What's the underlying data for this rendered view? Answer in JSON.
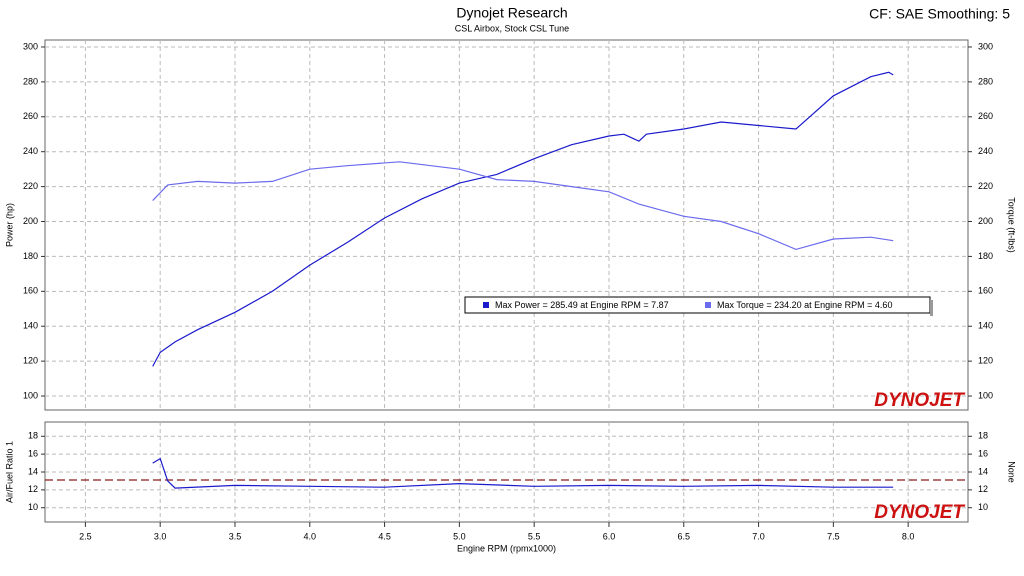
{
  "header": {
    "title": "Dynojet Research",
    "subtitle": "CSL Airbox, Stock CSL Tune",
    "annotation": "CF: SAE Smoothing: 5",
    "logo": "DYNOJET"
  },
  "chart_data": [
    {
      "type": "line",
      "ylabel": "Power (hp)",
      "y2label": "Torque (ft-lbs)",
      "xlim": [
        2.23,
        8.4
      ],
      "ylim": [
        92,
        304
      ],
      "yticks": [
        100,
        120,
        140,
        160,
        180,
        200,
        220,
        240,
        260,
        280,
        300
      ],
      "y2lim": [
        92,
        304
      ],
      "y2ticks": [
        100,
        120,
        140,
        160,
        180,
        200,
        220,
        240,
        260,
        280,
        300
      ],
      "grid": true,
      "legend": "center-right",
      "series": [
        {
          "name": "Max Power = 285.49 at Engine RPM = 7.87",
          "color": "#1a1acc",
          "x": [
            2.95,
            3.0,
            3.1,
            3.25,
            3.5,
            3.75,
            4.0,
            4.25,
            4.5,
            4.75,
            5.0,
            5.25,
            5.5,
            5.75,
            6.0,
            6.1,
            6.2,
            6.25,
            6.5,
            6.75,
            7.0,
            7.25,
            7.5,
            7.75,
            7.87,
            7.9
          ],
          "values": [
            117,
            125,
            131,
            138,
            148,
            160,
            175,
            188,
            202,
            213,
            222,
            227,
            236,
            244,
            249,
            250,
            246,
            250,
            253,
            257,
            255,
            253,
            272,
            283,
            285.49,
            284
          ]
        },
        {
          "name": "Max Torque = 234.20 at Engine RPM = 4.60",
          "color": "#6b6bee",
          "axis": "y2",
          "x": [
            2.95,
            3.05,
            3.25,
            3.5,
            3.75,
            4.0,
            4.25,
            4.6,
            5.0,
            5.25,
            5.5,
            5.75,
            6.0,
            6.2,
            6.5,
            6.75,
            7.0,
            7.25,
            7.5,
            7.75,
            7.9
          ],
          "values": [
            212,
            221,
            223,
            222,
            223,
            230,
            232,
            234.2,
            230,
            224,
            223,
            220,
            217,
            210,
            203,
            200,
            193,
            184,
            190,
            191,
            189
          ]
        }
      ]
    },
    {
      "type": "line",
      "ylabel": "Air/Fuel Ratio 1",
      "y2label": "None",
      "xlabel": "Engine RPM (rpmx1000)",
      "xlim": [
        2.23,
        8.4
      ],
      "xticks": [
        2.5,
        {
          "value": 3,
          "label": "3.0"
        },
        3.5,
        {
          "value": 4,
          "label": "4.0"
        },
        4.5,
        {
          "value": 5,
          "label": "5.0"
        },
        5.5,
        {
          "value": 6,
          "label": "6.0"
        },
        6.5,
        {
          "value": 7,
          "label": "7.0"
        },
        7.5,
        {
          "value": 8,
          "label": "8.0"
        }
      ],
      "ylim": [
        8.4,
        19.6
      ],
      "yticks": [
        10,
        12,
        14,
        16,
        18
      ],
      "y2lim": [
        8.4,
        19.6
      ],
      "y2ticks": [
        10,
        12,
        14,
        16,
        18
      ],
      "grid": true,
      "hline": 13.1,
      "hline_color": "#8b1a1a",
      "series": [
        {
          "color": "#1a1acc",
          "x": [
            2.95,
            3.0,
            3.05,
            3.1,
            3.5,
            4.0,
            4.5,
            5.0,
            5.5,
            6.0,
            6.5,
            7.0,
            7.5,
            7.9
          ],
          "values": [
            15,
            15.5,
            13,
            12.2,
            12.5,
            12.4,
            12.3,
            12.7,
            12.4,
            12.5,
            12.4,
            12.5,
            12.3,
            12.3
          ]
        }
      ]
    }
  ]
}
